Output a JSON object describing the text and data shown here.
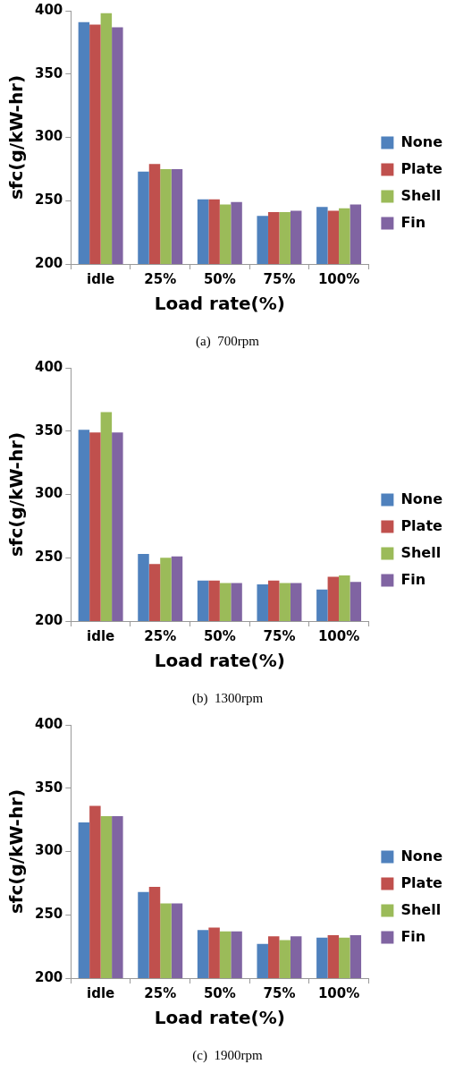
{
  "chart_data": [
    {
      "type": "bar",
      "title": "(a)  700rpm",
      "xlabel": "Load rate(%)",
      "ylabel": "sfc(g/kW-hr)",
      "categories": [
        "idle",
        "25%",
        "50%",
        "75%",
        "100%"
      ],
      "ylim": [
        200,
        400
      ],
      "yticks": [
        200,
        250,
        300,
        350,
        400
      ],
      "grid": false,
      "legend": "right",
      "series": [
        {
          "name": "None",
          "color": "#4f81bd",
          "values": [
            391,
            273,
            251,
            238,
            245
          ]
        },
        {
          "name": "Plate",
          "color": "#c0504d",
          "values": [
            389,
            279,
            251,
            241,
            242
          ]
        },
        {
          "name": "Shell",
          "color": "#9bbb59",
          "values": [
            398,
            275,
            247,
            241,
            244
          ]
        },
        {
          "name": "Fin",
          "color": "#8064a2",
          "values": [
            387,
            275,
            249,
            242,
            247
          ]
        }
      ]
    },
    {
      "type": "bar",
      "title": "(b)  1300rpm",
      "xlabel": "Load rate(%)",
      "ylabel": "sfc(g/kW-hr)",
      "categories": [
        "idle",
        "25%",
        "50%",
        "75%",
        "100%"
      ],
      "ylim": [
        200,
        400
      ],
      "yticks": [
        200,
        250,
        300,
        350,
        400
      ],
      "grid": false,
      "legend": "right",
      "series": [
        {
          "name": "None",
          "color": "#4f81bd",
          "values": [
            351,
            253,
            232,
            229,
            225
          ]
        },
        {
          "name": "Plate",
          "color": "#c0504d",
          "values": [
            349,
            245,
            232,
            232,
            235
          ]
        },
        {
          "name": "Shell",
          "color": "#9bbb59",
          "values": [
            365,
            250,
            230,
            230,
            236
          ]
        },
        {
          "name": "Fin",
          "color": "#8064a2",
          "values": [
            349,
            251,
            230,
            230,
            231
          ]
        }
      ]
    },
    {
      "type": "bar",
      "title": "(c)  1900rpm",
      "xlabel": "Load rate(%)",
      "ylabel": "sfc(g/kW-hr)",
      "categories": [
        "idle",
        "25%",
        "50%",
        "75%",
        "100%"
      ],
      "ylim": [
        200,
        400
      ],
      "yticks": [
        200,
        250,
        300,
        350,
        400
      ],
      "grid": false,
      "legend": "right",
      "series": [
        {
          "name": "None",
          "color": "#4f81bd",
          "values": [
            323,
            268,
            238,
            227,
            232
          ]
        },
        {
          "name": "Plate",
          "color": "#c0504d",
          "values": [
            336,
            272,
            240,
            233,
            234
          ]
        },
        {
          "name": "Shell",
          "color": "#9bbb59",
          "values": [
            328,
            259,
            237,
            230,
            232
          ]
        },
        {
          "name": "Fin",
          "color": "#8064a2",
          "values": [
            328,
            259,
            237,
            233,
            234
          ]
        }
      ]
    }
  ]
}
